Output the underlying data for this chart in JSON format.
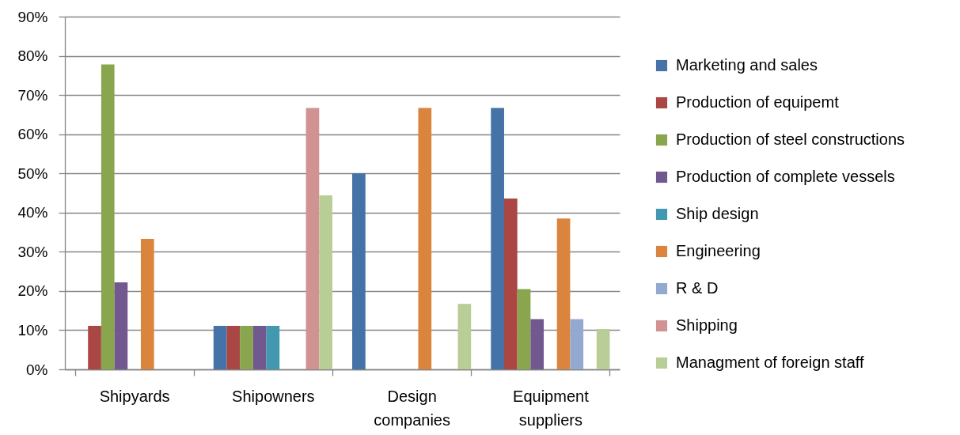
{
  "chart_data": {
    "type": "bar",
    "categories": [
      "Shipyards",
      "Shipowners",
      "Design companies",
      "Equipment suppliers"
    ],
    "series": [
      {
        "name": "Marketing and sales",
        "color": "#4572a7",
        "values": [
          null,
          11.1,
          50,
          66.7
        ]
      },
      {
        "name": "Production of equipemt",
        "color": "#aa4643",
        "values": [
          11.1,
          11.1,
          null,
          43.6
        ]
      },
      {
        "name": "Production of steel constructions",
        "color": "#89a54e",
        "values": [
          77.8,
          11.1,
          null,
          20.5
        ]
      },
      {
        "name": "Production of complete vessels",
        "color": "#71588f",
        "values": [
          22.2,
          11.1,
          null,
          12.8
        ]
      },
      {
        "name": "Ship design",
        "color": "#4198af",
        "values": [
          null,
          11.1,
          null,
          null
        ]
      },
      {
        "name": "Engineering",
        "color": "#db843d",
        "values": [
          33.3,
          null,
          66.7,
          38.5
        ]
      },
      {
        "name": "R & D",
        "color": "#93a9cf",
        "values": [
          null,
          null,
          null,
          12.8
        ]
      },
      {
        "name": "Shipping",
        "color": "#d19392",
        "values": [
          null,
          66.7,
          null,
          null
        ]
      },
      {
        "name": "Managment of foreign staff",
        "color": "#b9cd96",
        "values": [
          null,
          44.4,
          16.7,
          10.3
        ]
      }
    ],
    "ylim": [
      0,
      90
    ],
    "yticks": [
      {
        "value": 0,
        "label": "0%"
      },
      {
        "value": 10,
        "label": "10%"
      },
      {
        "value": 20,
        "label": "20%"
      },
      {
        "value": 30,
        "label": "30%"
      },
      {
        "value": 40,
        "label": "40%"
      },
      {
        "value": 50,
        "label": "50%"
      },
      {
        "value": 60,
        "label": "60%"
      },
      {
        "value": 70,
        "label": "70%"
      },
      {
        "value": 80,
        "label": "80%"
      },
      {
        "value": 90,
        "label": "90%"
      }
    ],
    "grid": "y",
    "legend": "right"
  }
}
